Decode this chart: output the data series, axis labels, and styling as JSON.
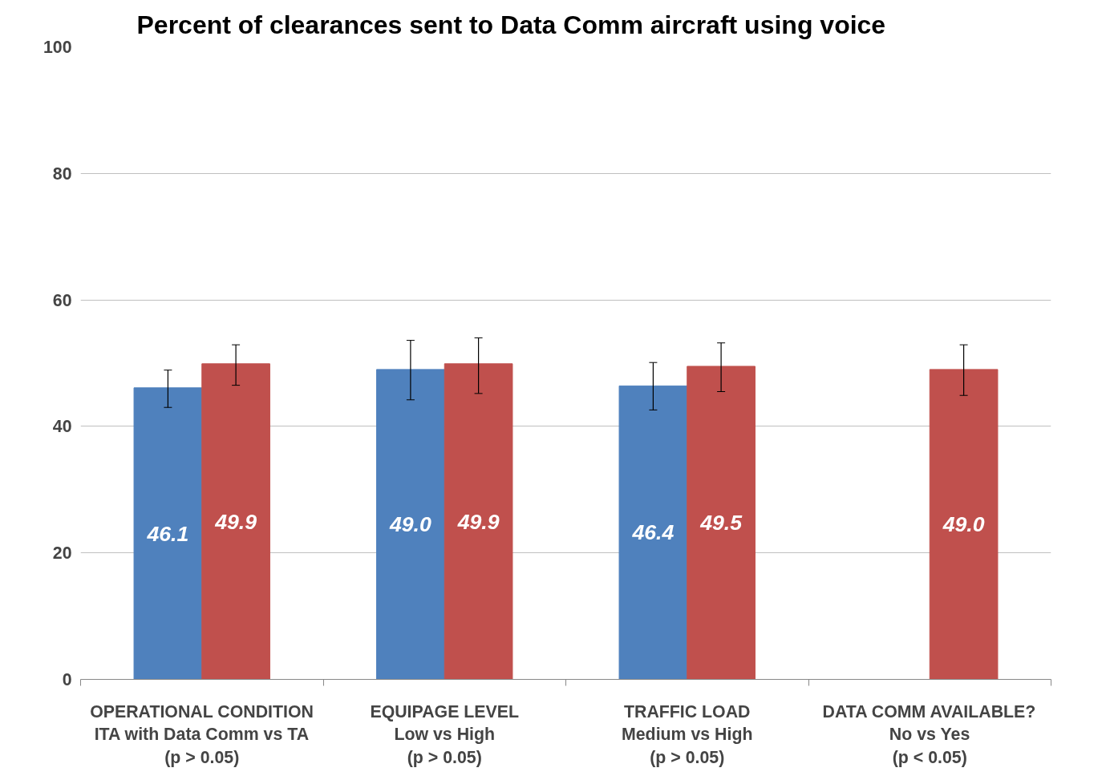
{
  "chart_data": {
    "type": "bar",
    "title": "Percent of clearances sent to Data Comm aircraft using voice",
    "categories": [
      "OPERATIONAL CONDITION\nITA with Data Comm vs TA\n(p > 0.05)",
      "EQUIPAGE LEVEL\nLow vs High\n(p > 0.05)",
      "TRAFFIC LOAD\nMedium vs High\n(p > 0.05)",
      "DATA COMM AVAILABLE?\nNo vs Yes\n(p < 0.05)"
    ],
    "series": [
      {
        "color": "#4f81bd",
        "values": [
          46.1,
          49.0,
          46.4,
          null
        ],
        "value_labels": [
          "46.1",
          "49.0",
          "46.4",
          null
        ],
        "errors": [
          [
            43.0,
            48.9
          ],
          [
            44.2,
            53.6
          ],
          [
            42.6,
            50.1
          ],
          null
        ]
      },
      {
        "color": "#c0504d",
        "values": [
          49.9,
          49.9,
          49.5,
          49.0
        ],
        "value_labels": [
          "49.9",
          "49.9",
          "49.5",
          "49.0"
        ],
        "errors": [
          [
            46.5,
            52.9
          ],
          [
            45.2,
            54.0
          ],
          [
            45.5,
            53.2
          ],
          [
            44.9,
            52.9
          ]
        ]
      }
    ],
    "ylim": [
      0,
      100
    ],
    "yticks": [
      0,
      20,
      40,
      60,
      80,
      100
    ],
    "grid": "y"
  }
}
